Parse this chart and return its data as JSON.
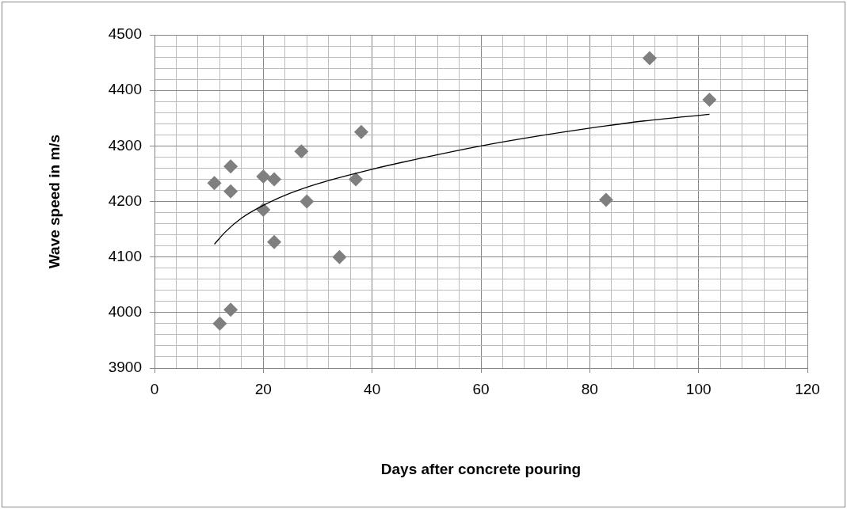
{
  "chart_data": {
    "type": "scatter",
    "xlabel": "Days after concrete pouring",
    "ylabel": "Wave speed in m/s",
    "xlim": [
      0,
      120
    ],
    "ylim": [
      3900,
      4500
    ],
    "xticks": [
      0,
      {
        "value": 4,
        "label": null
      },
      {
        "value": 8,
        "label": null
      },
      {
        "value": 12,
        "label": null
      },
      {
        "value": 16,
        "label": null
      },
      20,
      {
        "value": 24,
        "label": null
      },
      {
        "value": 28,
        "label": null
      },
      {
        "value": 32,
        "label": null
      },
      {
        "value": 36,
        "label": null
      },
      40,
      {
        "value": 44,
        "label": null
      },
      {
        "value": 48,
        "label": null
      },
      {
        "value": 52,
        "label": null
      },
      {
        "value": 56,
        "label": null
      },
      60,
      {
        "value": 64,
        "label": null
      },
      {
        "value": 68,
        "label": null
      },
      {
        "value": 72,
        "label": null
      },
      {
        "value": 76,
        "label": null
      },
      80,
      {
        "value": 84,
        "label": null
      },
      {
        "value": 88,
        "label": null
      },
      {
        "value": 92,
        "label": null
      },
      {
        "value": 96,
        "label": null
      },
      100,
      {
        "value": 104,
        "label": null
      },
      {
        "value": 108,
        "label": null
      },
      {
        "value": 112,
        "label": null
      },
      {
        "value": 116,
        "label": null
      },
      120
    ],
    "yticks": [
      3900,
      {
        "value": 3920,
        "label": null
      },
      {
        "value": 3940,
        "label": null
      },
      {
        "value": 3960,
        "label": null
      },
      {
        "value": 3980,
        "label": null
      },
      4000,
      {
        "value": 4020,
        "label": null
      },
      {
        "value": 4040,
        "label": null
      },
      {
        "value": 4060,
        "label": null
      },
      {
        "value": 4080,
        "label": null
      },
      4100,
      {
        "value": 4120,
        "label": null
      },
      {
        "value": 4140,
        "label": null
      },
      {
        "value": 4160,
        "label": null
      },
      {
        "value": 4180,
        "label": null
      },
      4200,
      {
        "value": 4220,
        "label": null
      },
      {
        "value": 4240,
        "label": null
      },
      {
        "value": 4260,
        "label": null
      },
      {
        "value": 4280,
        "label": null
      },
      4300,
      {
        "value": 4320,
        "label": null
      },
      {
        "value": 4340,
        "label": null
      },
      {
        "value": 4360,
        "label": null
      },
      {
        "value": 4380,
        "label": null
      },
      4400,
      {
        "value": 4420,
        "label": null
      },
      {
        "value": 4440,
        "label": null
      },
      {
        "value": 4460,
        "label": null
      },
      {
        "value": 4480,
        "label": null
      },
      4500
    ],
    "grid": true,
    "legend": false,
    "marker": "diamond",
    "series": [
      {
        "color": "#7f7f7f",
        "x": [
          11,
          14,
          14,
          12,
          14,
          20,
          20,
          22,
          22,
          27,
          28,
          34,
          37,
          38,
          83,
          91,
          102
        ],
        "values": [
          4233,
          4263,
          4218,
          3980,
          4005,
          4245,
          4185,
          4240,
          4127,
          4290,
          4200,
          4100,
          4240,
          4325,
          4203,
          4458,
          4383
        ]
      },
      {
        "type": "line",
        "color": "#000000",
        "marker": "none",
        "x": [
          11,
          13,
          16,
          20,
          25,
          30,
          40,
          50,
          60,
          70,
          80,
          90,
          102
        ],
        "values": [
          4123,
          4145,
          4170,
          4193,
          4215,
          4232,
          4258,
          4280,
          4300,
          4317,
          4332,
          4345,
          4357
        ]
      }
    ]
  }
}
